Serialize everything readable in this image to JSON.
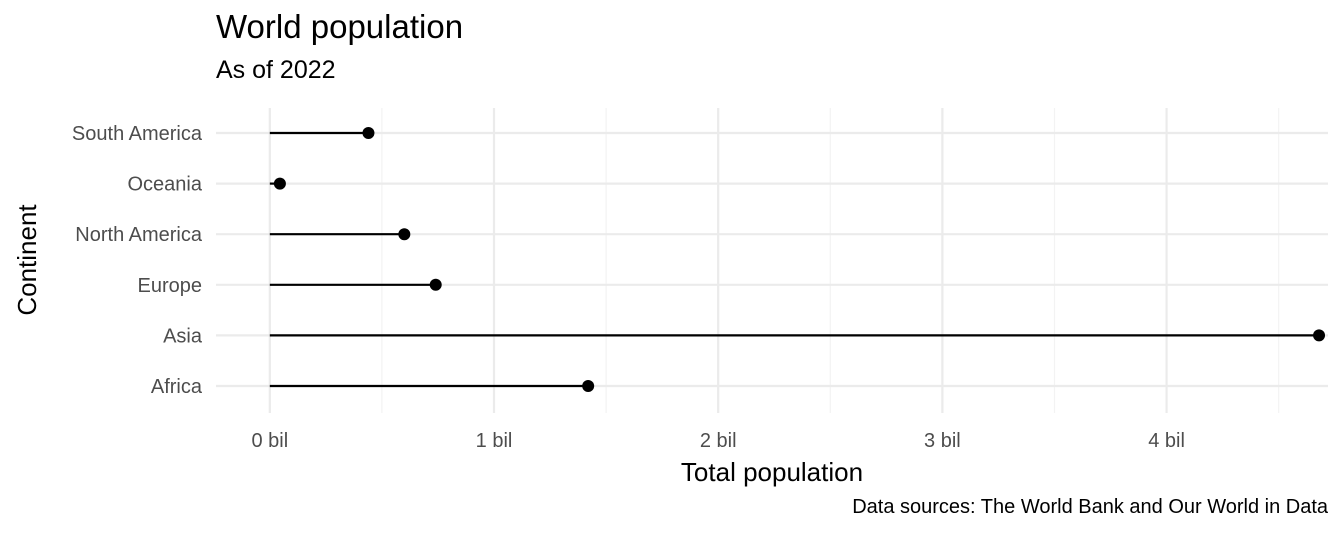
{
  "chart_data": {
    "type": "lollipop",
    "title": "World population",
    "subtitle": "As of 2022",
    "caption": "Data sources: The World Bank and Our World in Data",
    "xlabel": "Total population",
    "ylabel": "Continent",
    "x_unit": "billion",
    "xlim": [
      -0.24,
      4.72
    ],
    "x_ticks": [
      0,
      1,
      2,
      3,
      4
    ],
    "x_tick_labels": [
      "0 bil",
      "1 bil",
      "2 bil",
      "3 bil",
      "4 bil"
    ],
    "categories": [
      "South America",
      "Oceania",
      "North America",
      "Europe",
      "Asia",
      "Africa"
    ],
    "values": [
      0.44,
      0.045,
      0.6,
      0.74,
      4.68,
      1.42
    ],
    "grid": true,
    "legend": "none",
    "colors": {
      "stem": "#000000",
      "point": "#000000",
      "grid_major": "#ebebeb",
      "grid_minor": "#f3f3f3",
      "tick_text": "#4d4d4d"
    }
  }
}
